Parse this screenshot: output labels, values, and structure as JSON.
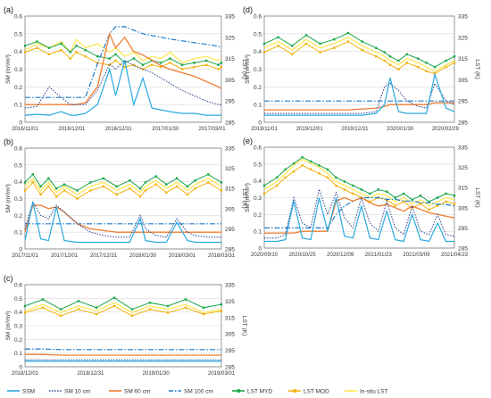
{
  "colors": {
    "ssm": "#29a9e0",
    "sm10": "#27408b",
    "sm60": "#ee7d31",
    "sm100": "#1e7bc8",
    "lst_myd": "#1aa64a",
    "lst_mod": "#f3b10e",
    "insitu": "#fde64b",
    "grid": "#d9d9d9",
    "axis": "#555555"
  },
  "legend": {
    "placement": "bottom",
    "items": [
      {
        "key": "ssm",
        "label": "SSM",
        "style": "solid"
      },
      {
        "key": "sm10",
        "label": "SM 10 cm",
        "style": "dotted"
      },
      {
        "key": "sm60",
        "label": "SM 60 cm",
        "style": "solid"
      },
      {
        "key": "sm100",
        "label": "SM 100 cm",
        "style": "dashdot"
      },
      {
        "key": "lst_myd",
        "label": "LST MYD",
        "style": "dot-line"
      },
      {
        "key": "lst_mod",
        "label": "LST MOD",
        "style": "dot-line"
      },
      {
        "key": "insitu",
        "label": "In-situ LST",
        "style": "solid"
      }
    ]
  },
  "chart_data": [
    {
      "panel": "(a)",
      "type": "line",
      "ylabel": "SM (m³/m³)",
      "y2label": "LST (K)",
      "ylim": [
        0,
        0.6
      ],
      "yticks": [
        "0",
        "0.1",
        "0.2",
        "0.3",
        "0.4",
        "0.5",
        "0.6"
      ],
      "y2lim": [
        285,
        335
      ],
      "y2ticks": [
        "285",
        "295",
        "305",
        "315",
        "325",
        "335"
      ],
      "xticks": [
        "2016/11/01",
        "2016/12/01",
        "2016/12/31",
        "2017/01/30",
        "2017/03/01"
      ],
      "grid": true,
      "x": [
        0,
        8,
        16,
        24,
        30,
        34,
        40,
        48,
        56,
        60,
        66,
        72,
        78,
        84,
        90,
        96,
        104,
        112,
        120,
        128,
        130
      ],
      "series": [
        {
          "key": "ssm",
          "values": [
            0.04,
            0.045,
            0.04,
            0.06,
            0.04,
            0.04,
            0.05,
            0.1,
            0.3,
            0.15,
            0.35,
            0.1,
            0.25,
            0.08,
            0.07,
            0.06,
            0.05,
            0.05,
            0.04,
            0.04,
            0.04
          ]
        },
        {
          "key": "sm10",
          "values": [
            0.08,
            0.09,
            0.2,
            0.14,
            0.1,
            0.1,
            0.1,
            0.18,
            0.33,
            0.3,
            0.35,
            0.32,
            0.3,
            0.28,
            0.25,
            0.22,
            0.18,
            0.15,
            0.12,
            0.1,
            0.1
          ]
        },
        {
          "key": "sm60",
          "values": [
            0.1,
            0.1,
            0.1,
            0.1,
            0.1,
            0.1,
            0.11,
            0.2,
            0.5,
            0.42,
            0.48,
            0.4,
            0.38,
            0.35,
            0.32,
            0.3,
            0.28,
            0.26,
            0.23,
            0.2,
            0.19
          ]
        },
        {
          "key": "sm100",
          "values": [
            0.14,
            0.14,
            0.14,
            0.14,
            0.14,
            0.14,
            0.14,
            0.33,
            0.5,
            0.54,
            0.54,
            0.52,
            0.5,
            0.49,
            0.48,
            0.47,
            0.46,
            0.45,
            0.44,
            0.43,
            0.42
          ]
        },
        {
          "key": "lst_myd",
          "values": [
            321,
            323,
            320,
            322,
            318,
            321,
            319,
            316,
            315,
            317,
            313,
            315,
            312,
            314,
            313,
            315,
            312,
            313,
            314,
            312,
            313
          ]
        },
        {
          "key": "lst_mod",
          "values": [
            318,
            320,
            317,
            319,
            315,
            318,
            316,
            313,
            312,
            314,
            311,
            312,
            310,
            312,
            311,
            313,
            310,
            311,
            312,
            310,
            311
          ]
        },
        {
          "key": "insitu",
          "values": [
            319,
            322,
            320,
            323,
            318,
            324,
            320,
            322,
            318,
            320,
            316,
            318,
            314,
            316,
            315,
            318,
            313,
            315,
            316,
            314,
            315
          ]
        }
      ]
    },
    {
      "panel": "(b)",
      "type": "line",
      "ylabel": "SM (m³/m³)",
      "y2label": "LST (K)",
      "ylim": [
        0,
        0.6
      ],
      "yticks": [
        "0",
        "0.1",
        "0.2",
        "0.3",
        "0.4",
        "0.5",
        "0.6"
      ],
      "y2lim": [
        285,
        335
      ],
      "y2ticks": [
        "285",
        "295",
        "305",
        "315",
        "325",
        "335"
      ],
      "xticks": [
        "2017/11/01",
        "2017/12/01",
        "2017/12/31",
        "2018/01/30",
        "2018/03/01",
        "2018/03/31"
      ],
      "grid": true,
      "x": [
        0,
        6,
        12,
        18,
        24,
        30,
        40,
        50,
        60,
        70,
        80,
        88,
        92,
        100,
        108,
        116,
        124,
        130,
        140,
        150
      ],
      "series": [
        {
          "key": "ssm",
          "values": [
            0.05,
            0.28,
            0.06,
            0.05,
            0.25,
            0.05,
            0.04,
            0.04,
            0.04,
            0.04,
            0.04,
            0.18,
            0.05,
            0.04,
            0.04,
            0.16,
            0.05,
            0.04,
            0.04,
            0.04
          ]
        },
        {
          "key": "sm10",
          "values": [
            0.12,
            0.28,
            0.2,
            0.18,
            0.26,
            0.22,
            0.15,
            0.1,
            0.08,
            0.07,
            0.07,
            0.2,
            0.12,
            0.08,
            0.07,
            0.18,
            0.1,
            0.08,
            0.07,
            0.07
          ]
        },
        {
          "key": "sm60",
          "values": [
            0.1,
            0.26,
            0.26,
            0.24,
            0.25,
            0.22,
            0.15,
            0.12,
            0.11,
            0.1,
            0.1,
            0.1,
            0.1,
            0.1,
            0.1,
            0.1,
            0.1,
            0.1,
            0.1,
            0.1
          ]
        },
        {
          "key": "sm100",
          "values": [
            0.15,
            0.15,
            0.15,
            0.15,
            0.15,
            0.15,
            0.15,
            0.15,
            0.15,
            0.15,
            0.15,
            0.15,
            0.15,
            0.15,
            0.15,
            0.15,
            0.15,
            0.15,
            0.15,
            0.15
          ]
        },
        {
          "key": "lst_myd",
          "values": [
            318,
            322,
            316,
            320,
            315,
            317,
            314,
            318,
            320,
            316,
            319,
            315,
            318,
            321,
            317,
            320,
            316,
            319,
            322,
            318
          ]
        },
        {
          "key": "lst_mod",
          "values": [
            314,
            318,
            312,
            316,
            311,
            314,
            310,
            314,
            316,
            312,
            315,
            311,
            314,
            317,
            313,
            316,
            312,
            315,
            318,
            314
          ]
        },
        {
          "key": "insitu",
          "values": [
            316,
            320,
            314,
            318,
            313,
            316,
            312,
            316,
            318,
            314,
            317,
            313,
            316,
            319,
            315,
            318,
            314,
            317,
            320,
            316
          ]
        }
      ]
    },
    {
      "panel": "(c)",
      "type": "line",
      "ylabel": "SM (m³/m³)",
      "y2label": "LST (K)",
      "ylim": [
        0,
        0.6
      ],
      "yticks": [
        "0",
        "0.1",
        "0.2",
        "0.3",
        "0.4",
        "0.5",
        "0.6"
      ],
      "y2lim": [
        285,
        335
      ],
      "y2ticks": [
        "285",
        "295",
        "305",
        "315",
        "325",
        "335"
      ],
      "xticks": [
        "2018/12/01",
        "2018/12/31",
        "2019/01/30",
        "2019/03/01"
      ],
      "grid": true,
      "x": [
        0,
        10,
        20,
        30,
        40,
        50,
        60,
        70,
        80,
        90,
        100,
        110
      ],
      "series": [
        {
          "key": "ssm",
          "values": [
            0.04,
            0.04,
            0.04,
            0.04,
            0.04,
            0.04,
            0.04,
            0.04,
            0.04,
            0.04,
            0.04,
            0.04
          ]
        },
        {
          "key": "sm10",
          "values": [
            0.05,
            0.05,
            0.05,
            0.05,
            0.05,
            0.05,
            0.05,
            0.05,
            0.05,
            0.05,
            0.05,
            0.05
          ]
        },
        {
          "key": "sm60",
          "values": [
            0.09,
            0.09,
            0.085,
            0.085,
            0.085,
            0.085,
            0.085,
            0.085,
            0.085,
            0.085,
            0.085,
            0.085
          ]
        },
        {
          "key": "sm100",
          "values": [
            0.13,
            0.13,
            0.125,
            0.125,
            0.125,
            0.125,
            0.125,
            0.125,
            0.125,
            0.125,
            0.125,
            0.125
          ]
        },
        {
          "key": "lst_myd",
          "values": [
            322,
            326,
            320,
            325,
            321,
            327,
            320,
            324,
            322,
            326,
            321,
            323
          ]
        },
        {
          "key": "lst_mod",
          "values": [
            318,
            321,
            316,
            320,
            317,
            322,
            316,
            320,
            318,
            321,
            317,
            319
          ]
        },
        {
          "key": "insitu",
          "values": [
            319,
            323,
            318,
            322,
            319,
            324,
            318,
            322,
            320,
            323,
            318,
            320
          ]
        }
      ]
    },
    {
      "panel": "(d)",
      "type": "line",
      "ylabel": "SM (m³/m³)",
      "y2label": "LST (K)",
      "ylim": [
        0,
        0.6
      ],
      "yticks": [
        "0",
        "0.1",
        "0.2",
        "0.3",
        "0.4",
        "0.5",
        "0.6"
      ],
      "y2lim": [
        285,
        335
      ],
      "y2ticks": [
        "285",
        "295",
        "305",
        "315",
        "325",
        "335"
      ],
      "xticks": [
        "2019/11/01",
        "2019/12/01",
        "2019/12/31",
        "2020/01/30",
        "2020/02/29"
      ],
      "grid": true,
      "x": [
        0,
        10,
        20,
        30,
        40,
        50,
        60,
        70,
        80,
        86,
        90,
        96,
        102,
        110,
        116,
        122,
        130,
        136
      ],
      "series": [
        {
          "key": "ssm",
          "values": [
            0.04,
            0.04,
            0.04,
            0.04,
            0.04,
            0.04,
            0.04,
            0.04,
            0.05,
            0.1,
            0.25,
            0.06,
            0.05,
            0.05,
            0.05,
            0.27,
            0.08,
            0.06
          ]
        },
        {
          "key": "sm10",
          "values": [
            0.05,
            0.05,
            0.05,
            0.05,
            0.05,
            0.05,
            0.05,
            0.05,
            0.06,
            0.2,
            0.22,
            0.18,
            0.12,
            0.09,
            0.08,
            0.22,
            0.12,
            0.1
          ]
        },
        {
          "key": "sm60",
          "values": [
            0.07,
            0.07,
            0.07,
            0.07,
            0.07,
            0.07,
            0.07,
            0.075,
            0.08,
            0.09,
            0.1,
            0.1,
            0.1,
            0.1,
            0.1,
            0.11,
            0.11,
            0.11
          ]
        },
        {
          "key": "sm100",
          "values": [
            0.12,
            0.12,
            0.12,
            0.12,
            0.12,
            0.12,
            0.12,
            0.12,
            0.12,
            0.12,
            0.12,
            0.12,
            0.12,
            0.12,
            0.12,
            0.12,
            0.12,
            0.12
          ]
        },
        {
          "key": "lst_myd",
          "values": [
            322,
            325,
            321,
            326,
            322,
            324,
            327,
            323,
            320,
            318,
            316,
            314,
            317,
            315,
            313,
            311,
            314,
            316
          ]
        },
        {
          "key": "lst_mod",
          "values": [
            318,
            321,
            317,
            322,
            318,
            320,
            323,
            319,
            316,
            314,
            312,
            310,
            313,
            311,
            309,
            308,
            311,
            313
          ]
        },
        {
          "key": "insitu",
          "values": [
            320,
            323,
            319,
            324,
            320,
            322,
            325,
            321,
            318,
            316,
            314,
            312,
            315,
            313,
            311,
            309,
            312,
            314
          ]
        }
      ]
    },
    {
      "panel": "(e)",
      "type": "line",
      "ylabel": "SM (m³/m³)",
      "y2label": "LST (K)",
      "ylim": [
        0,
        0.6
      ],
      "yticks": [
        "0",
        "0.1",
        "0.2",
        "0.3",
        "0.4",
        "0.5",
        "0.6"
      ],
      "y2lim": [
        285,
        335
      ],
      "y2ticks": [
        "285",
        "295",
        "305",
        "315",
        "325",
        "335"
      ],
      "xticks": [
        "2020/09/10",
        "2020/10/25",
        "2020/12/09",
        "2021/01/23",
        "2021/03/09",
        "2021/04/23"
      ],
      "grid": true,
      "x": [
        0,
        15,
        25,
        35,
        45,
        55,
        65,
        75,
        85,
        95,
        105,
        115,
        125,
        135,
        145,
        155,
        165,
        175,
        185,
        195,
        205,
        215,
        225
      ],
      "series": [
        {
          "key": "ssm",
          "values": [
            0.04,
            0.04,
            0.05,
            0.28,
            0.06,
            0.05,
            0.3,
            0.1,
            0.3,
            0.07,
            0.06,
            0.25,
            0.06,
            0.05,
            0.22,
            0.05,
            0.04,
            0.2,
            0.05,
            0.04,
            0.15,
            0.04,
            0.04
          ]
        },
        {
          "key": "sm10",
          "values": [
            0.06,
            0.06,
            0.08,
            0.3,
            0.15,
            0.12,
            0.35,
            0.2,
            0.33,
            0.18,
            0.12,
            0.3,
            0.15,
            0.1,
            0.28,
            0.12,
            0.08,
            0.25,
            0.1,
            0.08,
            0.2,
            0.08,
            0.07
          ]
        },
        {
          "key": "sm60",
          "values": [
            0.09,
            0.09,
            0.09,
            0.09,
            0.1,
            0.1,
            0.1,
            0.1,
            0.28,
            0.3,
            0.28,
            0.3,
            0.27,
            0.25,
            0.26,
            0.24,
            0.22,
            0.25,
            0.23,
            0.21,
            0.2,
            0.19,
            0.18
          ]
        },
        {
          "key": "sm100",
          "values": [
            0.12,
            0.12,
            0.12,
            0.12,
            0.12,
            0.12,
            0.12,
            0.12,
            0.2,
            0.25,
            0.28,
            0.3,
            0.3,
            0.3,
            0.29,
            0.29,
            0.28,
            0.28,
            0.27,
            0.27,
            0.26,
            0.26,
            0.25
          ]
        },
        {
          "key": "lst_myd",
          "values": [
            316,
            320,
            324,
            327,
            330,
            328,
            326,
            324,
            320,
            318,
            316,
            314,
            312,
            314,
            313,
            310,
            312,
            309,
            311,
            308,
            310,
            312,
            311
          ]
        },
        {
          "key": "lst_mod",
          "values": [
            312,
            316,
            320,
            323,
            326,
            324,
            322,
            320,
            316,
            314,
            312,
            310,
            308,
            310,
            309,
            306,
            308,
            305,
            307,
            304,
            306,
            308,
            307
          ]
        },
        {
          "key": "insitu",
          "values": [
            314,
            318,
            322,
            326,
            329,
            327,
            325,
            322,
            318,
            316,
            314,
            312,
            310,
            312,
            311,
            308,
            310,
            307,
            309,
            306,
            308,
            310,
            309
          ]
        }
      ]
    }
  ]
}
